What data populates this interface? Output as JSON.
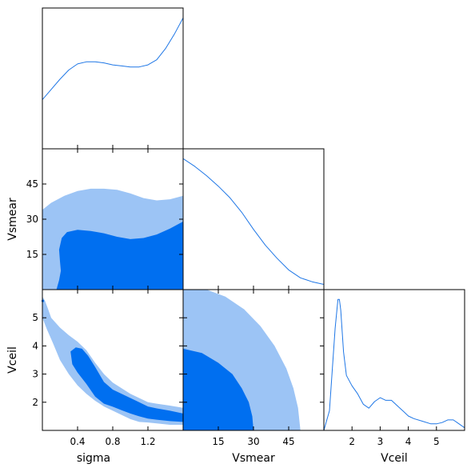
{
  "chart_data": {
    "type": "corner-plot",
    "colors": {
      "line": "#1f77e6",
      "fill_inner": "#006ff0",
      "fill_outer": "#9cc4f5"
    },
    "parameters": [
      {
        "name": "sigma",
        "range": [
          0.0,
          1.6
        ],
        "ticks": [
          0.4,
          0.8,
          1.2
        ],
        "tick_labels": [
          "0.4",
          "0.8",
          "1.2"
        ]
      },
      {
        "name": "Vsmear",
        "range": [
          0,
          60
        ],
        "ticks": [
          15,
          30,
          45
        ],
        "tick_labels": [
          "15",
          "30",
          "45"
        ]
      },
      {
        "name": "Vceil",
        "range": [
          1.0,
          6.0
        ],
        "ticks": [
          2,
          3,
          4,
          5
        ],
        "tick_labels": [
          "2",
          "3",
          "4",
          "5"
        ]
      }
    ],
    "marginals": [
      {
        "param": "sigma",
        "x": [
          0.0,
          0.1,
          0.2,
          0.3,
          0.4,
          0.5,
          0.6,
          0.7,
          0.8,
          0.9,
          1.0,
          1.1,
          1.2,
          1.3,
          1.4,
          1.5,
          1.6
        ],
        "density": [
          0.48,
          0.58,
          0.68,
          0.77,
          0.83,
          0.85,
          0.85,
          0.84,
          0.82,
          0.81,
          0.8,
          0.8,
          0.82,
          0.87,
          0.98,
          1.12,
          1.28
        ]
      },
      {
        "param": "Vsmear",
        "x": [
          0,
          5,
          10,
          15,
          20,
          25,
          30,
          35,
          40,
          45,
          50,
          55,
          60
        ],
        "density": [
          1.0,
          0.94,
          0.87,
          0.79,
          0.7,
          0.59,
          0.46,
          0.34,
          0.24,
          0.15,
          0.09,
          0.06,
          0.04
        ]
      },
      {
        "param": "Vceil",
        "x": [
          1.0,
          1.2,
          1.4,
          1.5,
          1.55,
          1.6,
          1.7,
          1.8,
          2.0,
          2.2,
          2.4,
          2.6,
          2.8,
          3.0,
          3.2,
          3.4,
          3.6,
          3.8,
          4.0,
          4.2,
          4.5,
          4.8,
          5.0,
          5.2,
          5.4,
          5.6,
          5.8,
          6.0
        ],
        "density": [
          0.0,
          0.15,
          0.78,
          1.0,
          1.0,
          0.92,
          0.6,
          0.42,
          0.34,
          0.28,
          0.2,
          0.17,
          0.22,
          0.25,
          0.23,
          0.23,
          0.19,
          0.15,
          0.11,
          0.09,
          0.07,
          0.05,
          0.05,
          0.06,
          0.08,
          0.08,
          0.05,
          0.02
        ]
      }
    ],
    "contours_2d": [
      {
        "x": "sigma",
        "y": "Vsmear",
        "outer": [
          [
            0.0,
            0
          ],
          [
            1.6,
            0
          ],
          [
            1.6,
            40
          ],
          [
            1.45,
            38.5
          ],
          [
            1.3,
            38
          ],
          [
            1.15,
            39
          ],
          [
            1.0,
            41
          ],
          [
            0.85,
            42.5
          ],
          [
            0.7,
            43
          ],
          [
            0.55,
            43
          ],
          [
            0.4,
            42
          ],
          [
            0.25,
            40
          ],
          [
            0.1,
            37
          ],
          [
            0.0,
            34
          ]
        ],
        "inner": [
          [
            0.16,
            0
          ],
          [
            1.6,
            0
          ],
          [
            1.6,
            29
          ],
          [
            1.45,
            26
          ],
          [
            1.3,
            23.5
          ],
          [
            1.15,
            22
          ],
          [
            1.0,
            21.5
          ],
          [
            0.85,
            22.5
          ],
          [
            0.7,
            24
          ],
          [
            0.55,
            25
          ],
          [
            0.4,
            25.5
          ],
          [
            0.28,
            24.5
          ],
          [
            0.22,
            22
          ],
          [
            0.19,
            17
          ],
          [
            0.2,
            12
          ],
          [
            0.21,
            8
          ],
          [
            0.19,
            4
          ]
        ]
      },
      {
        "x": "sigma",
        "y": "Vceil",
        "outer": [
          [
            0.0,
            5.75
          ],
          [
            0.03,
            5.6
          ],
          [
            0.06,
            5.35
          ],
          [
            0.1,
            5.0
          ],
          [
            0.2,
            4.65
          ],
          [
            0.3,
            4.38
          ],
          [
            0.4,
            4.15
          ],
          [
            0.5,
            3.85
          ],
          [
            0.6,
            3.4
          ],
          [
            0.7,
            3.0
          ],
          [
            0.8,
            2.7
          ],
          [
            0.9,
            2.5
          ],
          [
            1.0,
            2.3
          ],
          [
            1.1,
            2.15
          ],
          [
            1.2,
            2.0
          ],
          [
            1.3,
            1.95
          ],
          [
            1.45,
            1.88
          ],
          [
            1.6,
            1.8
          ],
          [
            1.6,
            1.2
          ],
          [
            1.45,
            1.2
          ],
          [
            1.3,
            1.25
          ],
          [
            1.2,
            1.28
          ],
          [
            1.1,
            1.3
          ],
          [
            1.0,
            1.4
          ],
          [
            0.9,
            1.55
          ],
          [
            0.8,
            1.7
          ],
          [
            0.7,
            1.85
          ],
          [
            0.6,
            2.05
          ],
          [
            0.5,
            2.3
          ],
          [
            0.4,
            2.6
          ],
          [
            0.3,
            3.0
          ],
          [
            0.2,
            3.5
          ],
          [
            0.12,
            4.1
          ],
          [
            0.05,
            4.6
          ],
          [
            0.0,
            5.0
          ]
        ],
        "inner": [
          [
            0.32,
            3.8
          ],
          [
            0.38,
            3.95
          ],
          [
            0.45,
            3.9
          ],
          [
            0.52,
            3.65
          ],
          [
            0.6,
            3.25
          ],
          [
            0.7,
            2.72
          ],
          [
            0.8,
            2.45
          ],
          [
            0.9,
            2.3
          ],
          [
            1.0,
            2.15
          ],
          [
            1.1,
            2.0
          ],
          [
            1.2,
            1.85
          ],
          [
            1.3,
            1.78
          ],
          [
            1.45,
            1.7
          ],
          [
            1.6,
            1.6
          ],
          [
            1.6,
            1.3
          ],
          [
            1.45,
            1.33
          ],
          [
            1.3,
            1.38
          ],
          [
            1.2,
            1.42
          ],
          [
            1.1,
            1.5
          ],
          [
            1.0,
            1.6
          ],
          [
            0.9,
            1.72
          ],
          [
            0.8,
            1.84
          ],
          [
            0.7,
            1.95
          ],
          [
            0.6,
            2.2
          ],
          [
            0.5,
            2.65
          ],
          [
            0.4,
            3.05
          ],
          [
            0.34,
            3.35
          ]
        ]
      },
      {
        "x": "Vsmear",
        "y": "Vceil",
        "outer": [
          [
            0,
            1.0
          ],
          [
            0,
            6.0
          ],
          [
            10,
            6.0
          ],
          [
            18,
            5.75
          ],
          [
            26,
            5.3
          ],
          [
            33,
            4.7
          ],
          [
            39,
            4.0
          ],
          [
            44,
            3.2
          ],
          [
            47,
            2.5
          ],
          [
            49,
            1.8
          ],
          [
            50,
            1.0
          ]
        ],
        "inner": [
          [
            0,
            1.0
          ],
          [
            0,
            3.9
          ],
          [
            8,
            3.75
          ],
          [
            15,
            3.4
          ],
          [
            21,
            3.0
          ],
          [
            25,
            2.5
          ],
          [
            28,
            2.0
          ],
          [
            29.5,
            1.5
          ],
          [
            30,
            1.0
          ]
        ]
      }
    ],
    "axis_labels": {
      "x": [
        "sigma",
        "Vsmear",
        "Vceil"
      ],
      "y": [
        "Vsmear",
        "Vceil"
      ]
    }
  }
}
